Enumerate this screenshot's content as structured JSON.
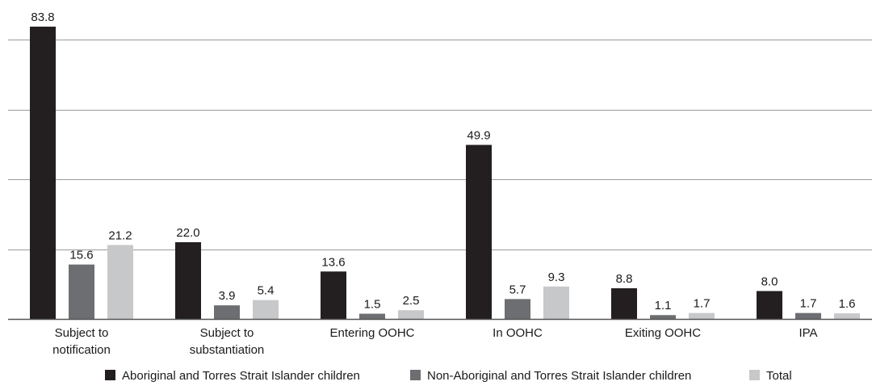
{
  "chart_data": {
    "type": "bar",
    "categories": [
      [
        "Subject to",
        "notification"
      ],
      [
        "Subject to",
        "substantiation"
      ],
      [
        "Entering OOHC"
      ],
      [
        "In OOHC"
      ],
      [
        "Exiting OOHC"
      ],
      [
        "IPA"
      ]
    ],
    "series": [
      {
        "name": "Aboriginal and Torres Strait Islander children",
        "color": "#231f20",
        "values": [
          83.8,
          22.0,
          13.6,
          49.9,
          8.8,
          8.0
        ],
        "labels": [
          "83.8",
          "22.0",
          "13.6",
          "49.9",
          "8.8",
          "8.0"
        ]
      },
      {
        "name": "Non-Aboriginal and Torres Strait Islander children",
        "color": "#6d6e71",
        "values": [
          15.6,
          3.9,
          1.5,
          5.7,
          1.1,
          1.7
        ],
        "labels": [
          "15.6",
          "3.9",
          "1.5",
          "5.7",
          "1.1",
          "1.7"
        ]
      },
      {
        "name": "Total",
        "color": "#c7c8ca",
        "values": [
          21.2,
          5.4,
          2.5,
          9.3,
          1.7,
          1.6
        ],
        "labels": [
          "21.2",
          "5.4",
          "2.5",
          "9.3",
          "1.7",
          "1.6"
        ]
      }
    ],
    "ylim": [
      0,
      90
    ],
    "gridlines": [
      20,
      40,
      60,
      80
    ],
    "grid": true,
    "legend": "bottom",
    "title": "",
    "xlabel": "",
    "ylabel": ""
  }
}
